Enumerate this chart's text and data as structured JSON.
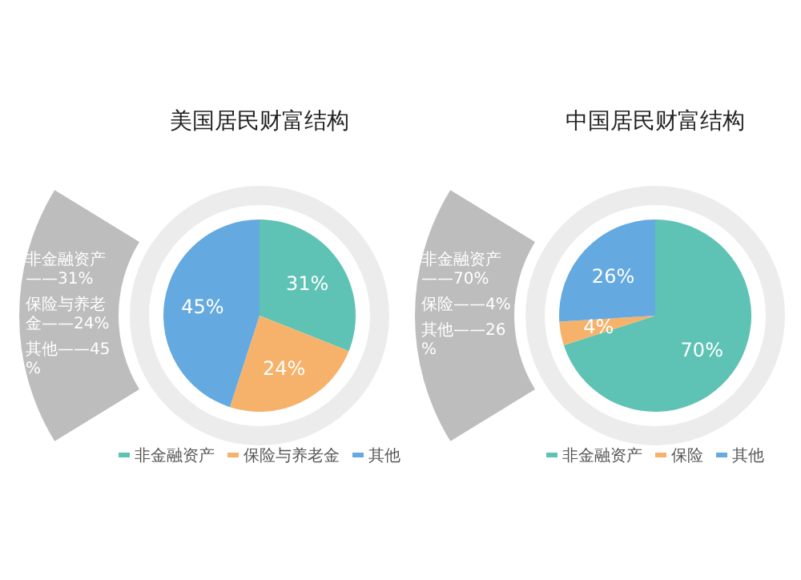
{
  "chart_data": [
    {
      "type": "pie",
      "title": "美国居民财富结构",
      "categories": [
        "非金融资产",
        "保险与养老金",
        "其他"
      ],
      "values": [
        31,
        24,
        45
      ],
      "colors": [
        "#5ec2b4",
        "#f6b26b",
        "#64a9e0"
      ],
      "value_labels": [
        "31%",
        "24%",
        "45%"
      ],
      "legend": "bottom",
      "annotations": [
        "非金融资产——31%",
        "保险与养老金——24%",
        "其他——45%"
      ]
    },
    {
      "type": "pie",
      "title": "中国居民财富结构",
      "categories": [
        "非金融资产",
        "保险",
        "其他"
      ],
      "values": [
        70,
        4,
        26
      ],
      "colors": [
        "#5ec2b4",
        "#f6b26b",
        "#64a9e0"
      ],
      "value_labels": [
        "70%",
        "4%",
        "26%"
      ],
      "legend": "bottom",
      "annotations": [
        "非金融资产——70%",
        "保险——4%",
        "其他——26%"
      ]
    }
  ]
}
